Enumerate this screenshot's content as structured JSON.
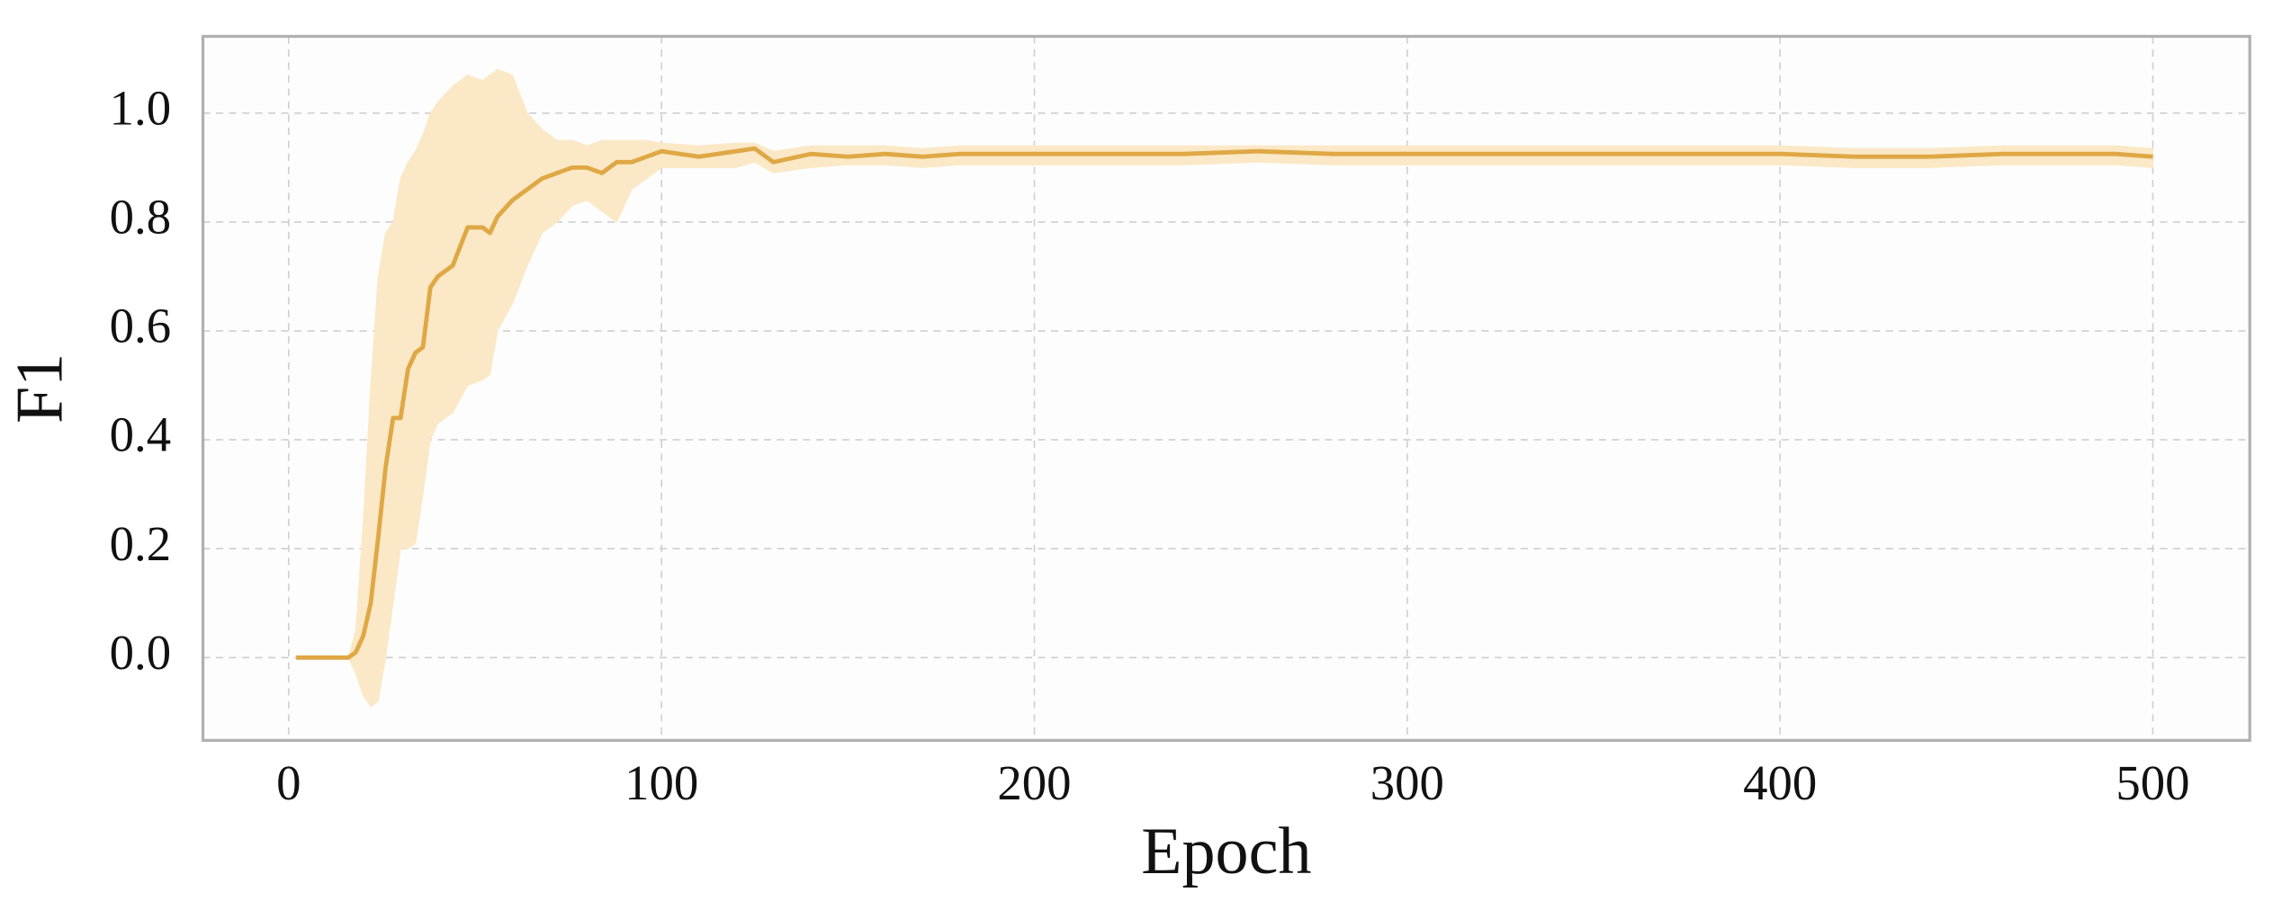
{
  "chart_data": {
    "type": "line",
    "x_label": "Epoch",
    "y_label": "F1",
    "x": [
      2,
      10,
      16,
      18,
      20,
      22,
      24,
      26,
      28,
      30,
      32,
      34,
      36,
      38,
      40,
      44,
      48,
      52,
      54,
      56,
      60,
      64,
      68,
      72,
      76,
      80,
      84,
      88,
      92,
      96,
      100,
      110,
      120,
      125,
      130,
      140,
      150,
      160,
      170,
      180,
      200,
      220,
      240,
      260,
      280,
      300,
      320,
      340,
      360,
      380,
      400,
      420,
      440,
      460,
      480,
      490,
      500
    ],
    "series": [
      {
        "color": "#dfa845",
        "band_color": "#fbe8c6",
        "values": [
          0,
          0,
          0,
          0.01,
          0.04,
          0.1,
          0.22,
          0.35,
          0.44,
          0.44,
          0.53,
          0.56,
          0.57,
          0.68,
          0.7,
          0.72,
          0.79,
          0.79,
          0.78,
          0.81,
          0.84,
          0.86,
          0.88,
          0.89,
          0.9,
          0.9,
          0.89,
          0.91,
          0.91,
          0.92,
          0.93,
          0.92,
          0.93,
          0.935,
          0.91,
          0.925,
          0.92,
          0.925,
          0.92,
          0.925,
          0.925,
          0.925,
          0.925,
          0.93,
          0.925,
          0.925,
          0.925,
          0.925,
          0.925,
          0.925,
          0.925,
          0.92,
          0.92,
          0.925,
          0.925,
          0.925,
          0.92
        ],
        "upper": [
          0,
          0,
          0,
          0.05,
          0.25,
          0.5,
          0.7,
          0.78,
          0.8,
          0.88,
          0.91,
          0.93,
          0.96,
          1.0,
          1.02,
          1.05,
          1.07,
          1.06,
          1.07,
          1.08,
          1.07,
          1.0,
          0.97,
          0.95,
          0.95,
          0.94,
          0.95,
          0.95,
          0.95,
          0.95,
          0.945,
          0.94,
          0.945,
          0.945,
          0.93,
          0.94,
          0.94,
          0.94,
          0.935,
          0.94,
          0.94,
          0.94,
          0.94,
          0.94,
          0.94,
          0.94,
          0.94,
          0.94,
          0.94,
          0.94,
          0.94,
          0.935,
          0.935,
          0.94,
          0.94,
          0.94,
          0.935
        ],
        "lower": [
          0,
          0,
          0,
          -0.03,
          -0.07,
          -0.09,
          -0.08,
          0.0,
          0.1,
          0.2,
          0.2,
          0.21,
          0.3,
          0.4,
          0.43,
          0.45,
          0.5,
          0.51,
          0.52,
          0.6,
          0.65,
          0.72,
          0.78,
          0.8,
          0.83,
          0.84,
          0.82,
          0.8,
          0.86,
          0.88,
          0.9,
          0.9,
          0.9,
          0.91,
          0.89,
          0.9,
          0.905,
          0.905,
          0.9,
          0.905,
          0.905,
          0.905,
          0.905,
          0.91,
          0.905,
          0.905,
          0.905,
          0.905,
          0.905,
          0.905,
          0.905,
          0.9,
          0.9,
          0.905,
          0.905,
          0.905,
          0.9
        ]
      }
    ],
    "xlim": [
      -23,
      526
    ],
    "ylim": [
      -0.152,
      1.141
    ],
    "xticks": [
      0,
      100,
      200,
      300,
      400,
      500
    ],
    "yticks": [
      {
        "value": 0,
        "label": "0.0"
      },
      {
        "value": 0.2,
        "label": "0.2"
      },
      {
        "value": 0.4,
        "label": "0.4"
      },
      {
        "value": 0.6,
        "label": "0.6"
      },
      {
        "value": 0.8,
        "label": "0.8"
      },
      {
        "value": 1.0,
        "label": "1.0"
      }
    ],
    "grid": true
  }
}
